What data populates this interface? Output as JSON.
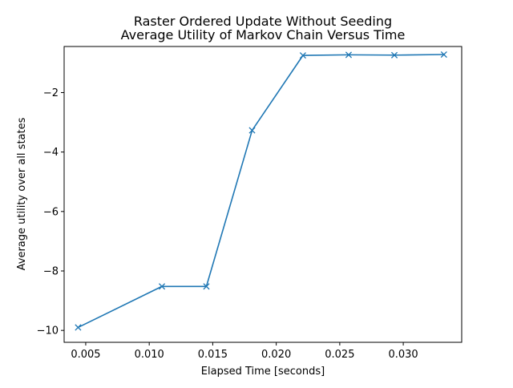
{
  "chart_data": {
    "type": "line",
    "title_lines": [
      "Raster Ordered Update Without Seeding",
      "Average Utility of Markov Chain Versus Time"
    ],
    "xlabel": "Elapsed Time [seconds]",
    "ylabel": "Average utility over all states",
    "xlim": [
      0.0033,
      0.0346
    ],
    "ylim": [
      -10.4,
      -0.45
    ],
    "xticks": [
      0.005,
      0.01,
      0.015,
      0.02,
      0.025,
      0.03
    ],
    "xtick_labels": [
      "0.005",
      "0.010",
      "0.015",
      "0.020",
      "0.025",
      "0.030"
    ],
    "yticks": [
      -10,
      -8,
      -6,
      -4,
      -2
    ],
    "ytick_labels": [
      "−10",
      "−8",
      "−6",
      "−4",
      "−2"
    ],
    "grid": false,
    "series": [
      {
        "color": "#1f77b4",
        "marker": "x",
        "x": [
          0.0044,
          0.011,
          0.0145,
          0.0181,
          0.0221,
          0.0257,
          0.0293,
          0.0332
        ],
        "y": [
          -9.9,
          -8.52,
          -8.52,
          -3.27,
          -0.75,
          -0.73,
          -0.74,
          -0.72
        ]
      }
    ]
  }
}
